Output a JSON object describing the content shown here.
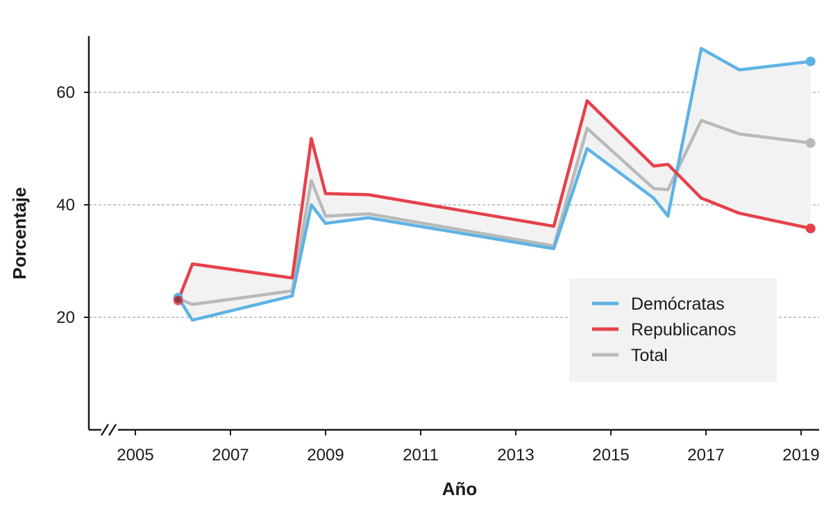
{
  "chart_data": {
    "type": "line",
    "xlabel": "Año",
    "ylabel": "Porcentaje",
    "xlim": [
      2004.5,
      2019.6
    ],
    "ylim": [
      0,
      70
    ],
    "x_ticks": [
      "2005",
      "2007",
      "2009",
      "2011",
      "2013",
      "2015",
      "2017",
      "2019"
    ],
    "y_ticks": [
      "20",
      "40",
      "60"
    ],
    "grid": "horizontal dashed at y ticks",
    "axis_break": "x-axis break before 2005",
    "shaded_region": "band between Demócratas and Republicanos",
    "legend_position": "center-right",
    "series": [
      {
        "name": "Demócratas",
        "color": "#5db3e4",
        "endpoint_markers": true,
        "points": [
          [
            2005.9,
            23.5
          ],
          [
            2006.2,
            19.5
          ],
          [
            2008.3,
            23.8
          ],
          [
            2008.7,
            40.0
          ],
          [
            2009.0,
            36.7
          ],
          [
            2009.9,
            37.7
          ],
          [
            2013.8,
            32.2
          ],
          [
            2014.5,
            50.0
          ],
          [
            2015.9,
            41.2
          ],
          [
            2016.2,
            38.0
          ],
          [
            2016.9,
            67.8
          ],
          [
            2017.7,
            64.0
          ],
          [
            2019.2,
            65.5
          ]
        ]
      },
      {
        "name": "Republicanos",
        "color": "#e5414a",
        "endpoint_markers": true,
        "points": [
          [
            2005.9,
            23.0
          ],
          [
            2006.2,
            29.5
          ],
          [
            2008.3,
            27.0
          ],
          [
            2008.7,
            51.8
          ],
          [
            2009.0,
            42.0
          ],
          [
            2009.9,
            41.8
          ],
          [
            2013.8,
            36.2
          ],
          [
            2014.5,
            58.5
          ],
          [
            2015.9,
            46.9
          ],
          [
            2016.2,
            47.2
          ],
          [
            2016.9,
            41.2
          ],
          [
            2017.7,
            38.5
          ],
          [
            2019.2,
            35.8
          ]
        ]
      },
      {
        "name": "Total",
        "color": "#b9b9b9",
        "endpoint_markers": "end",
        "points": [
          [
            2005.9,
            23.3
          ],
          [
            2006.2,
            22.3
          ],
          [
            2008.3,
            24.7
          ],
          [
            2008.7,
            44.3
          ],
          [
            2009.0,
            38.0
          ],
          [
            2009.9,
            38.4
          ],
          [
            2013.8,
            32.7
          ],
          [
            2014.5,
            53.6
          ],
          [
            2015.9,
            42.9
          ],
          [
            2016.2,
            42.7
          ],
          [
            2016.9,
            55.0
          ],
          [
            2017.7,
            52.6
          ],
          [
            2019.2,
            51.0
          ]
        ]
      }
    ]
  }
}
